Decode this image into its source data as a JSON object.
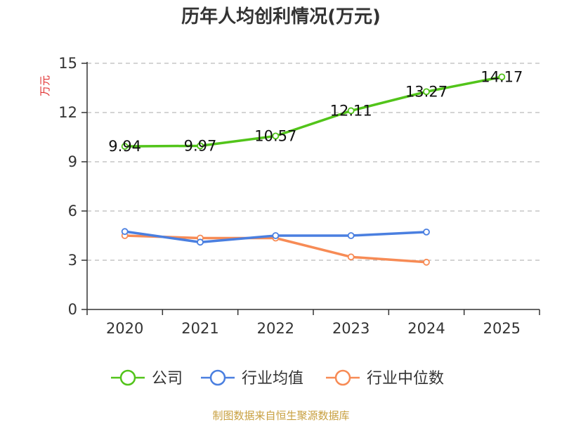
{
  "chart_data": {
    "type": "line",
    "title": "历年人均创利情况(万元)",
    "ylabel": "万元",
    "xlabel": "",
    "categories": [
      "2020",
      "2021",
      "2022",
      "2023",
      "2024",
      "2025"
    ],
    "ylim": [
      0,
      15
    ],
    "yticks": [
      "0",
      "3",
      "6",
      "9",
      "12",
      "15"
    ],
    "grid": true,
    "legend_position": "bottom",
    "series": [
      {
        "name": "公司",
        "color": "#52c41a",
        "values": [
          9.94,
          9.97,
          10.57,
          12.11,
          13.27,
          14.17
        ],
        "labels": [
          "9.94",
          "9.97",
          "10.57",
          "12.11",
          "13.27",
          "14.17"
        ]
      },
      {
        "name": "行业均值",
        "color": "#4a7fe0",
        "values": [
          4.75,
          4.1,
          4.5,
          4.5,
          4.72,
          null
        ]
      },
      {
        "name": "行业中位数",
        "color": "#f78b55",
        "values": [
          4.5,
          4.35,
          4.35,
          3.2,
          2.88,
          null
        ]
      }
    ],
    "source_text": "制图数据来自恒生聚源数据库",
    "source_color": "#c8a040",
    "ylabel_color": "#e03030"
  }
}
